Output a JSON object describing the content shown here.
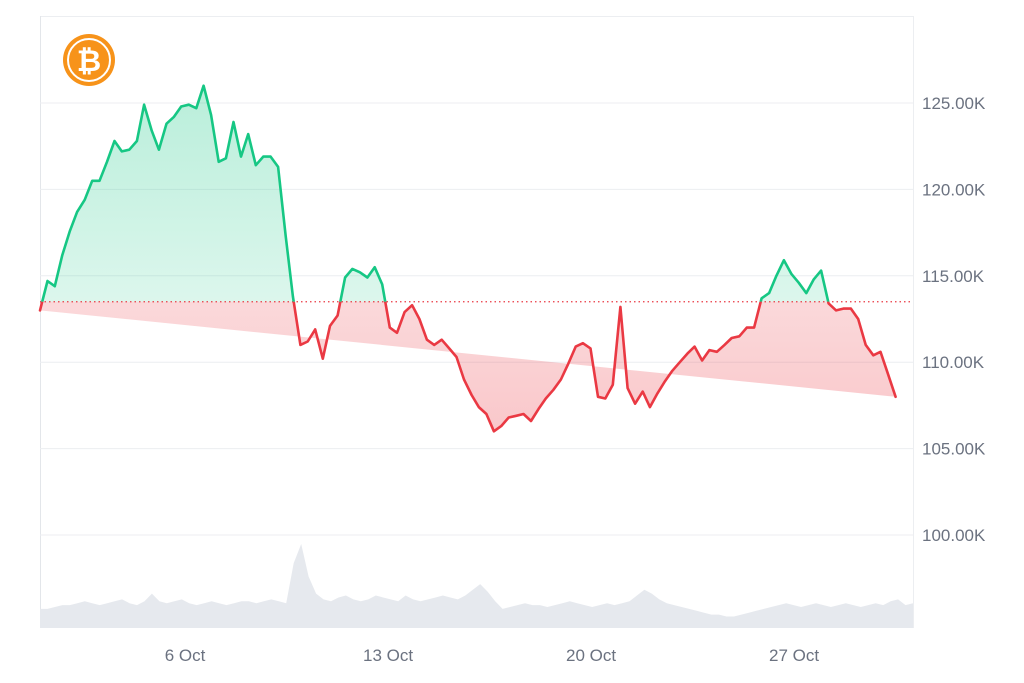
{
  "asset": {
    "icon": "bitcoin-icon",
    "symbol": "₿",
    "color": "#f7931a"
  },
  "colors": {
    "up": "#16c784",
    "down": "#ea3943",
    "grid": "#eceef1",
    "volume": "#e4e8ee",
    "baseline": "#ea3943"
  },
  "chart_data": {
    "type": "line",
    "xlabel": "",
    "ylabel": "",
    "title": "",
    "baseline": 113500,
    "ylim": [
      95000,
      130000
    ],
    "y_ticks": [
      {
        "value": 125000,
        "label": "125.00K"
      },
      {
        "value": 120000,
        "label": "120.00K"
      },
      {
        "value": 115000,
        "label": "115.00K"
      },
      {
        "value": 110000,
        "label": "110.00K"
      },
      {
        "value": 105000,
        "label": "105.00K"
      },
      {
        "value": 100000,
        "label": "100.00K"
      }
    ],
    "x_ticks": [
      {
        "t": 5.0,
        "label": "6 Oct"
      },
      {
        "t": 12.0,
        "label": "13 Oct"
      },
      {
        "t": 19.0,
        "label": "20 Oct"
      },
      {
        "t": 26.0,
        "label": "27 Oct"
      }
    ],
    "xlim": [
      0,
      30.1
    ],
    "t": [
      0.0,
      0.26,
      0.51,
      0.77,
      1.03,
      1.28,
      1.54,
      1.8,
      2.05,
      2.31,
      2.57,
      2.82,
      3.08,
      3.34,
      3.59,
      3.85,
      4.1,
      4.36,
      4.62,
      4.87,
      5.13,
      5.39,
      5.64,
      5.9,
      6.16,
      6.41,
      6.67,
      6.93,
      7.18,
      7.44,
      7.7,
      7.95,
      8.21,
      8.47,
      8.72,
      8.98,
      9.23,
      9.49,
      9.75,
      10.0,
      10.26,
      10.52,
      10.77,
      11.03,
      11.29,
      11.54,
      11.8,
      12.06,
      12.31,
      12.57,
      12.83,
      13.08,
      13.34,
      13.59,
      13.85,
      14.11,
      14.36,
      14.62,
      14.88,
      15.13,
      15.39,
      15.65,
      15.9,
      16.16,
      16.42,
      16.67,
      16.93,
      17.19,
      17.44,
      17.7,
      17.96,
      18.21,
      18.47,
      18.72,
      18.98,
      19.24,
      19.49,
      19.75,
      20.01,
      20.26,
      20.52,
      20.78,
      21.03,
      21.29,
      21.55,
      21.8,
      22.06,
      22.32,
      22.57,
      22.83,
      23.08,
      23.34,
      23.6,
      23.85,
      24.11,
      24.37,
      24.62,
      24.88,
      25.14,
      25.39,
      25.65,
      25.91,
      26.16,
      26.42,
      26.68,
      26.93,
      27.19,
      27.45,
      27.7,
      27.96,
      28.21,
      28.47,
      28.73,
      28.98,
      29.24,
      29.5,
      29.75,
      30.01
    ],
    "price": [
      113000,
      114700,
      114400,
      116200,
      117600,
      118700,
      119400,
      120500,
      120500,
      121600,
      122800,
      122200,
      122300,
      122800,
      124900,
      123400,
      122300,
      123800,
      124200,
      124800,
      124900,
      124700,
      126000,
      124300,
      121600,
      121800,
      123900,
      121900,
      123200,
      121400,
      121900,
      121900,
      121300,
      117300,
      113800,
      111000,
      111200,
      111900,
      110200,
      112100,
      112700,
      114900,
      115400,
      115200,
      114900,
      115500,
      114500,
      112000,
      111700,
      112900,
      113300,
      112500,
      111300,
      111000,
      111300,
      110800,
      110300,
      109000,
      108100,
      107400,
      107000,
      106000,
      106300,
      106800,
      106900,
      107000,
      106600,
      107300,
      107900,
      108400,
      109000,
      109900,
      110900,
      111100,
      110800,
      108000,
      107900,
      108700,
      113200,
      108500,
      107600,
      108300,
      107400,
      108200,
      108900,
      109500,
      110000,
      110500,
      110900,
      110100,
      110700,
      110600,
      111000,
      111400,
      111500,
      112000,
      112000,
      113700,
      114000,
      115000,
      115900,
      115100,
      114600,
      114000,
      114800,
      115300,
      113400,
      113000,
      113100,
      113100,
      112500,
      111000,
      110400,
      110600,
      109300,
      108000
    ],
    "volume": [
      10,
      10,
      11,
      12,
      12,
      13,
      14,
      13,
      12,
      13,
      14,
      15,
      13,
      12,
      14,
      18,
      14,
      13,
      14,
      15,
      13,
      12,
      13,
      14,
      13,
      12,
      13,
      14,
      14,
      13,
      14,
      15,
      14,
      13,
      34,
      44,
      27,
      18,
      15,
      14,
      16,
      17,
      15,
      14,
      15,
      17,
      16,
      15,
      14,
      17,
      15,
      14,
      15,
      16,
      17,
      16,
      15,
      17,
      20,
      23,
      19,
      14,
      10,
      11,
      12,
      13,
      12,
      12,
      11,
      12,
      13,
      14,
      13,
      12,
      11,
      12,
      13,
      12,
      13,
      14,
      17,
      20,
      18,
      15,
      13,
      12,
      11,
      10,
      9,
      8,
      7,
      7,
      6,
      6,
      7,
      8,
      9,
      10,
      11,
      12,
      13,
      12,
      11,
      12,
      13,
      12,
      11,
      12,
      13,
      12,
      11,
      12,
      13,
      12,
      14,
      15,
      12,
      13
    ]
  }
}
